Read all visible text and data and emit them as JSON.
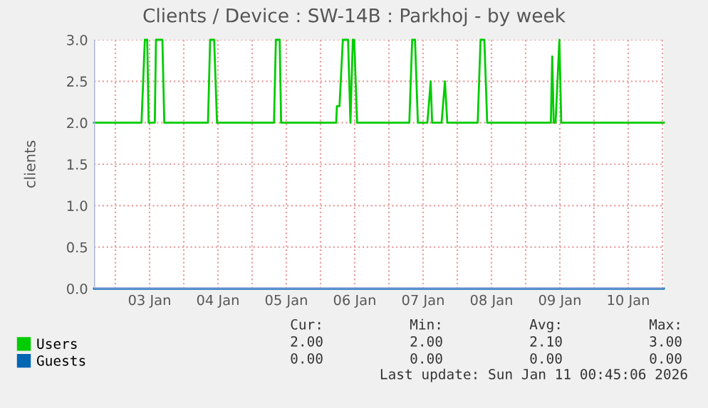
{
  "chart_data": {
    "type": "line",
    "title": "Clients / Device : SW-14B : Parkhoj - by week",
    "ylabel": "clients",
    "x": [
      "2026-01-02T16:30",
      "2026-01-03T09:10",
      "2026-01-03T10:20",
      "2026-01-03T11:10",
      "2026-01-03T11:40",
      "2026-01-03T13:50",
      "2026-01-03T14:15",
      "2026-01-03T16:30",
      "2026-01-03T17:10",
      "2026-01-04T08:30",
      "2026-01-04T09:15",
      "2026-01-04T10:40",
      "2026-01-04T11:40",
      "2026-01-05T07:40",
      "2026-01-05T08:20",
      "2026-01-05T09:40",
      "2026-01-05T10:10",
      "2026-01-06T05:30",
      "2026-01-06T05:45",
      "2026-01-06T06:40",
      "2026-01-06T07:50",
      "2026-01-06T09:40",
      "2026-01-06T10:30",
      "2026-01-06T11:20",
      "2026-01-06T11:50",
      "2026-01-06T12:50",
      "2026-01-07T07:10",
      "2026-01-07T08:10",
      "2026-01-07T09:10",
      "2026-01-07T10:10",
      "2026-01-07T13:30",
      "2026-01-07T14:40",
      "2026-01-07T15:10",
      "2026-01-07T18:30",
      "2026-01-07T19:40",
      "2026-01-07T20:30",
      "2026-01-08T07:10",
      "2026-01-08T08:10",
      "2026-01-08T09:30",
      "2026-01-08T10:30",
      "2026-01-09T08:50",
      "2026-01-09T09:20",
      "2026-01-09T09:50",
      "2026-01-09T10:30",
      "2026-01-09T11:50",
      "2026-01-09T12:30",
      "2026-01-11T00:30"
    ],
    "series": [
      {
        "name": "Users",
        "color": "#00cc00",
        "values": [
          2,
          2,
          3,
          3,
          2,
          2,
          3,
          3,
          2,
          2,
          3,
          3,
          2,
          2,
          3,
          3,
          2,
          2,
          2.2,
          2.2,
          3,
          3,
          2,
          3,
          3,
          2,
          2,
          3,
          3,
          2,
          2,
          2.5,
          2,
          2,
          2.5,
          2,
          2,
          3,
          3,
          2,
          2,
          2.8,
          2,
          2,
          3,
          2,
          2
        ]
      },
      {
        "name": "Guests",
        "color": "#0066b3",
        "x": [
          "2026-01-02T16:30",
          "2026-01-11T00:30"
        ],
        "values": [
          0,
          0
        ]
      }
    ],
    "xlim": [
      "2026-01-02T16:30",
      "2026-01-11T00:30"
    ],
    "xticks": [
      {
        "value": "2026-01-03T00:00",
        "label": null
      },
      {
        "value": "2026-01-03T12:00",
        "label": "03 Jan"
      },
      {
        "value": "2026-01-04T00:00",
        "label": null
      },
      {
        "value": "2026-01-04T12:00",
        "label": "04 Jan"
      },
      {
        "value": "2026-01-05T00:00",
        "label": null
      },
      {
        "value": "2026-01-05T12:00",
        "label": "05 Jan"
      },
      {
        "value": "2026-01-06T00:00",
        "label": null
      },
      {
        "value": "2026-01-06T12:00",
        "label": "06 Jan"
      },
      {
        "value": "2026-01-07T00:00",
        "label": null
      },
      {
        "value": "2026-01-07T12:00",
        "label": "07 Jan"
      },
      {
        "value": "2026-01-08T00:00",
        "label": null
      },
      {
        "value": "2026-01-08T12:00",
        "label": "08 Jan"
      },
      {
        "value": "2026-01-09T00:00",
        "label": null
      },
      {
        "value": "2026-01-09T12:00",
        "label": "09 Jan"
      },
      {
        "value": "2026-01-10T00:00",
        "label": null
      },
      {
        "value": "2026-01-10T12:00",
        "label": "10 Jan"
      },
      {
        "value": "2026-01-11T00:00",
        "label": null
      }
    ],
    "ylim": [
      0,
      3
    ],
    "yticks": [
      {
        "value": 0,
        "label": "0.0"
      },
      {
        "value": 0.5,
        "label": "0.5"
      },
      {
        "value": 1,
        "label": "1.0"
      },
      {
        "value": 1.5,
        "label": "1.5"
      },
      {
        "value": 2,
        "label": "2.0"
      },
      {
        "value": 2.5,
        "label": "2.5"
      },
      {
        "value": 3,
        "label": "3.0"
      }
    ],
    "grid": true,
    "legend": "bottom left",
    "line_style": "solid",
    "marker": "none",
    "annotations": [
      "Cur:",
      "Min:",
      "Avg:",
      "Max:",
      "2.00",
      "2.00",
      "2.10",
      "3.00",
      "0.00",
      "0.00",
      "0.00",
      "0.00",
      "Last update: Sun Jan 11 00:45:06 2026"
    ]
  }
}
